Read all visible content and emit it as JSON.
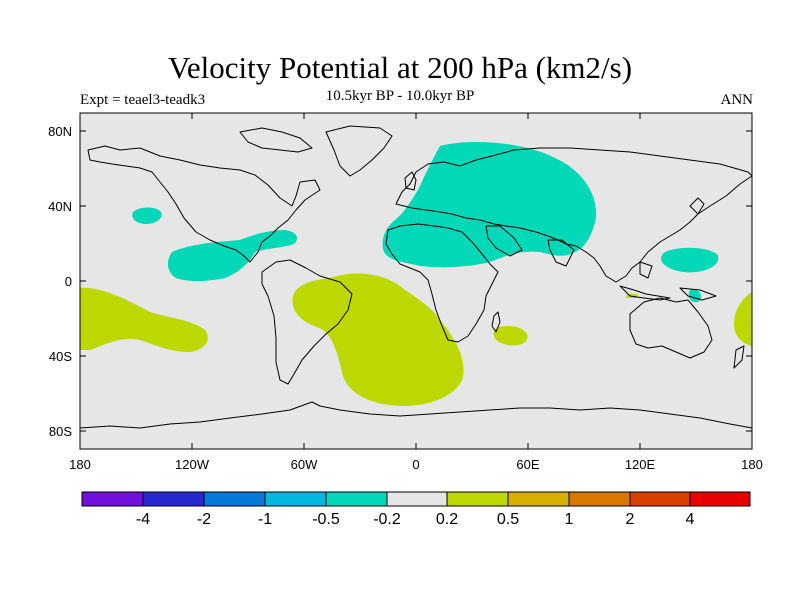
{
  "header": {
    "title": "Velocity Potential at 200 hPa (km2/s)",
    "subtitle": "10.5kyr BP - 10.0kyr BP",
    "left_label": "Expt = teael3-teadk3",
    "right_label": "ANN"
  },
  "map": {
    "lat_ticks": [
      "80N",
      "40N",
      "0",
      "40S",
      "80S"
    ],
    "lon_ticks": [
      "180",
      "120W",
      "60W",
      "0",
      "60E",
      "120E",
      "180"
    ],
    "colors": {
      "background": "#e6e6e6",
      "negative_fill": "#00d8b8",
      "positive_fill": "#bcd800",
      "coast": "#000000"
    },
    "regions": [
      {
        "name": "eurasia-africa-negative-anomaly",
        "sign": "negative"
      },
      {
        "name": "pacific-central-america-negative-anomaly",
        "sign": "negative"
      },
      {
        "name": "north-pacific-negative-anomaly",
        "sign": "negative"
      },
      {
        "name": "west-pacific-negative-anomaly",
        "sign": "negative"
      },
      {
        "name": "south-atlantic-positive-anomaly",
        "sign": "positive"
      },
      {
        "name": "south-pacific-positive-anomaly",
        "sign": "positive"
      },
      {
        "name": "madagascar-positive-anomaly",
        "sign": "positive"
      },
      {
        "name": "australia-east-positive-anomaly",
        "sign": "positive"
      }
    ]
  },
  "colorbar": {
    "colors": [
      "#7010d8",
      "#2828d0",
      "#0878d8",
      "#00b8e0",
      "#00d8b8",
      "#e6e6e6",
      "#bcd800",
      "#d8b000",
      "#d87800",
      "#d84000",
      "#e80000"
    ],
    "labels": [
      "-4",
      "-2",
      "-1",
      "-0.5",
      "-0.2",
      "0.2",
      "0.5",
      "1",
      "2",
      "4"
    ]
  }
}
